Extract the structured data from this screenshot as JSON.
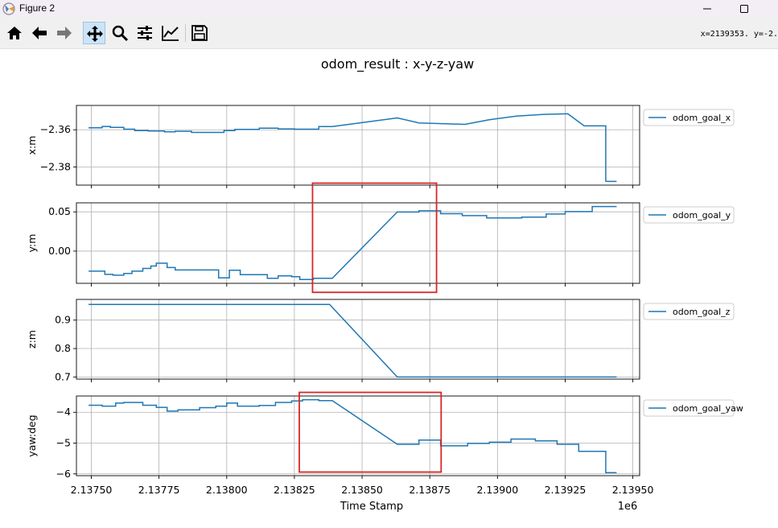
{
  "window": {
    "title": "Figure 2"
  },
  "toolbar": {
    "buttons": [
      "home-icon",
      "back-icon",
      "forward-icon",
      "pan-icon",
      "zoom-icon",
      "configure-subplots-icon",
      "edit-axis-icon",
      "save-icon"
    ],
    "coords_text": "x=2139353. y=-2."
  },
  "colors": {
    "line": "#1f77b4",
    "highlight": "#d62728",
    "grid": "#b0b0b0"
  },
  "chart_data": {
    "type": "line",
    "title": "odom_result : x-y-z-yaw",
    "xlabel": "Time Stamp",
    "x_offset_label": "1e6",
    "xlim": [
      2.137445,
      2.139525
    ],
    "xticks": [
      2.1375,
      2.13775,
      2.138,
      2.13825,
      2.1385,
      2.13875,
      2.139,
      2.13925,
      2.1395
    ],
    "xtick_labels": [
      "2.13750",
      "2.13775",
      "2.13800",
      "2.13825",
      "2.13850",
      "2.13875",
      "2.13900",
      "2.13925",
      "2.13950"
    ],
    "grid": true,
    "legend_position": "outside right",
    "subplots": [
      {
        "ylabel": "x:m",
        "ylim": [
          -2.3898,
          -2.3469
        ],
        "yticks": [
          -2.36,
          -2.38
        ],
        "ytick_labels": [
          "−2.36",
          "−2.38"
        ],
        "series": [
          {
            "name": "odom_goal_x",
            "x": [
              2.13749,
              2.13754,
              2.13754,
              2.13757,
              2.13757,
              2.13762,
              2.13762,
              2.13766,
              2.13766,
              2.13771,
              2.13771,
              2.13777,
              2.13777,
              2.13781,
              2.13781,
              2.13787,
              2.13787,
              2.13799,
              2.13799,
              2.13803,
              2.13803,
              2.13812,
              2.13812,
              2.13819,
              2.13819,
              2.13825,
              2.13825,
              2.13834,
              2.13834,
              2.13839,
              2.13863,
              2.13863,
              2.13871,
              2.13871,
              2.13888,
              2.13888,
              2.13897,
              2.13897,
              2.13907,
              2.13907,
              2.13917,
              2.13917,
              2.13926,
              2.13926,
              2.13932,
              2.13932,
              2.1394,
              2.1394,
              2.13941,
              2.13944
            ],
            "y": [
              -2.3589,
              -2.3589,
              -2.3582,
              -2.3582,
              -2.3587,
              -2.3587,
              -2.3597,
              -2.3597,
              -2.3604,
              -2.3604,
              -2.3607,
              -2.3607,
              -2.3611,
              -2.3611,
              -2.3608,
              -2.3608,
              -2.3614,
              -2.3614,
              -2.3604,
              -2.3604,
              -2.3598,
              -2.3598,
              -2.3591,
              -2.3591,
              -2.3595,
              -2.3595,
              -2.3597,
              -2.3597,
              -2.3583,
              -2.3583,
              -2.3536,
              -2.3536,
              -2.3563,
              -2.3563,
              -2.3571,
              -2.3571,
              -2.3546,
              -2.3546,
              -2.3526,
              -2.3526,
              -2.3517,
              -2.3517,
              -2.3514,
              -2.3514,
              -2.3579,
              -2.3579,
              -2.3579,
              -2.3877,
              -2.3878,
              -2.3878
            ]
          }
        ]
      },
      {
        "ylabel": "y:m",
        "ylim": [
          -0.0411,
          0.0615
        ],
        "yticks": [
          0.05,
          0.0
        ],
        "ytick_labels": [
          "0.05",
          "0.00"
        ],
        "series": [
          {
            "name": "odom_goal_y",
            "x": [
              2.13749,
              2.13755,
              2.13755,
              2.13758,
              2.13758,
              2.13762,
              2.13762,
              2.13765,
              2.13765,
              2.13769,
              2.13769,
              2.13772,
              2.13772,
              2.13774,
              2.13774,
              2.13778,
              2.13778,
              2.13781,
              2.13781,
              2.13797,
              2.13797,
              2.13801,
              2.13801,
              2.13805,
              2.13805,
              2.13815,
              2.13815,
              2.13819,
              2.13819,
              2.13824,
              2.13824,
              2.13827,
              2.13827,
              2.13832,
              2.13832,
              2.13839,
              2.13863,
              2.13871,
              2.13871,
              2.13879,
              2.13879,
              2.13887,
              2.13887,
              2.13896,
              2.13896,
              2.13909,
              2.13909,
              2.13918,
              2.13918,
              2.13925,
              2.13925,
              2.13935,
              2.13935,
              2.1394,
              2.1394,
              2.13944
            ],
            "y": [
              -0.0256,
              -0.0256,
              -0.0297,
              -0.0297,
              -0.0307,
              -0.0307,
              -0.0286,
              -0.0286,
              -0.0256,
              -0.0256,
              -0.0221,
              -0.0221,
              -0.019,
              -0.019,
              -0.0155,
              -0.0155,
              -0.021,
              -0.021,
              -0.0241,
              -0.0241,
              -0.0342,
              -0.0342,
              -0.0245,
              -0.0245,
              -0.0301,
              -0.0301,
              -0.0347,
              -0.0347,
              -0.0316,
              -0.0316,
              -0.0327,
              -0.0327,
              -0.0362,
              -0.0362,
              -0.0347,
              -0.0347,
              0.0498,
              0.0498,
              0.0513,
              0.0513,
              0.0477,
              0.0477,
              0.0452,
              0.0452,
              0.0422,
              0.0422,
              0.0432,
              0.0432,
              0.0472,
              0.0472,
              0.0503,
              0.0503,
              0.0568,
              0.0568,
              0.0568,
              0.0568
            ]
          }
        ]
      },
      {
        "ylabel": "z:m",
        "ylim": [
          0.6925,
          0.9728
        ],
        "yticks": [
          0.9,
          0.8,
          0.7
        ],
        "ytick_labels": [
          "0.9",
          "0.8",
          "0.7"
        ],
        "series": [
          {
            "name": "odom_goal_z",
            "x": [
              2.13749,
              2.13838,
              2.13863,
              2.13944
            ],
            "y": [
              0.955,
              0.955,
              0.7,
              0.7
            ]
          }
        ]
      },
      {
        "ylabel": "yaw:deg",
        "ylim": [
          -6.0588,
          -3.4706
        ],
        "yticks": [
          -4,
          -5,
          -6
        ],
        "ytick_labels": [
          "−4",
          "−5",
          "−6"
        ],
        "series": [
          {
            "name": "odom_goal_yaw",
            "x": [
              2.13749,
              2.13754,
              2.13754,
              2.13759,
              2.13759,
              2.13762,
              2.13762,
              2.13769,
              2.13769,
              2.13774,
              2.13774,
              2.13778,
              2.13778,
              2.13782,
              2.13782,
              2.1379,
              2.1379,
              2.13796,
              2.13796,
              2.138,
              2.138,
              2.13804,
              2.13804,
              2.13812,
              2.13812,
              2.13818,
              2.13818,
              2.13824,
              2.13824,
              2.13828,
              2.13828,
              2.13834,
              2.13834,
              2.13839,
              2.13863,
              2.13871,
              2.13871,
              2.13879,
              2.13879,
              2.13889,
              2.13889,
              2.13897,
              2.13897,
              2.13905,
              2.13905,
              2.13914,
              2.13914,
              2.13922,
              2.13922,
              2.1393,
              2.1393,
              2.13938,
              2.13938,
              2.1394,
              2.1394,
              2.13943,
              2.13943,
              2.13944
            ],
            "y": [
              -3.77,
              -3.77,
              -3.8,
              -3.8,
              -3.7,
              -3.7,
              -3.68,
              -3.68,
              -3.77,
              -3.77,
              -3.84,
              -3.84,
              -3.96,
              -3.96,
              -3.92,
              -3.92,
              -3.85,
              -3.85,
              -3.8,
              -3.8,
              -3.7,
              -3.7,
              -3.8,
              -3.8,
              -3.78,
              -3.78,
              -3.68,
              -3.68,
              -3.63,
              -3.63,
              -3.59,
              -3.59,
              -3.62,
              -3.62,
              -5.04,
              -5.04,
              -4.9,
              -4.9,
              -5.09,
              -5.09,
              -5.01,
              -5.01,
              -4.97,
              -4.97,
              -4.87,
              -4.87,
              -4.93,
              -4.93,
              -5.04,
              -5.04,
              -5.27,
              -5.27,
              -5.27,
              -5.27,
              -5.96,
              -5.96,
              -5.96,
              -5.96
            ]
          }
        ]
      }
    ],
    "highlight_boxes": [
      {
        "subplot": 1,
        "x": [
          2.138317,
          2.138775
        ],
        "y": [
          -0.0526,
          0.0866
        ]
      },
      {
        "subplot": 3,
        "x": [
          2.138268,
          2.138792
        ],
        "y": [
          -5.9412,
          -3.3529
        ]
      }
    ]
  }
}
